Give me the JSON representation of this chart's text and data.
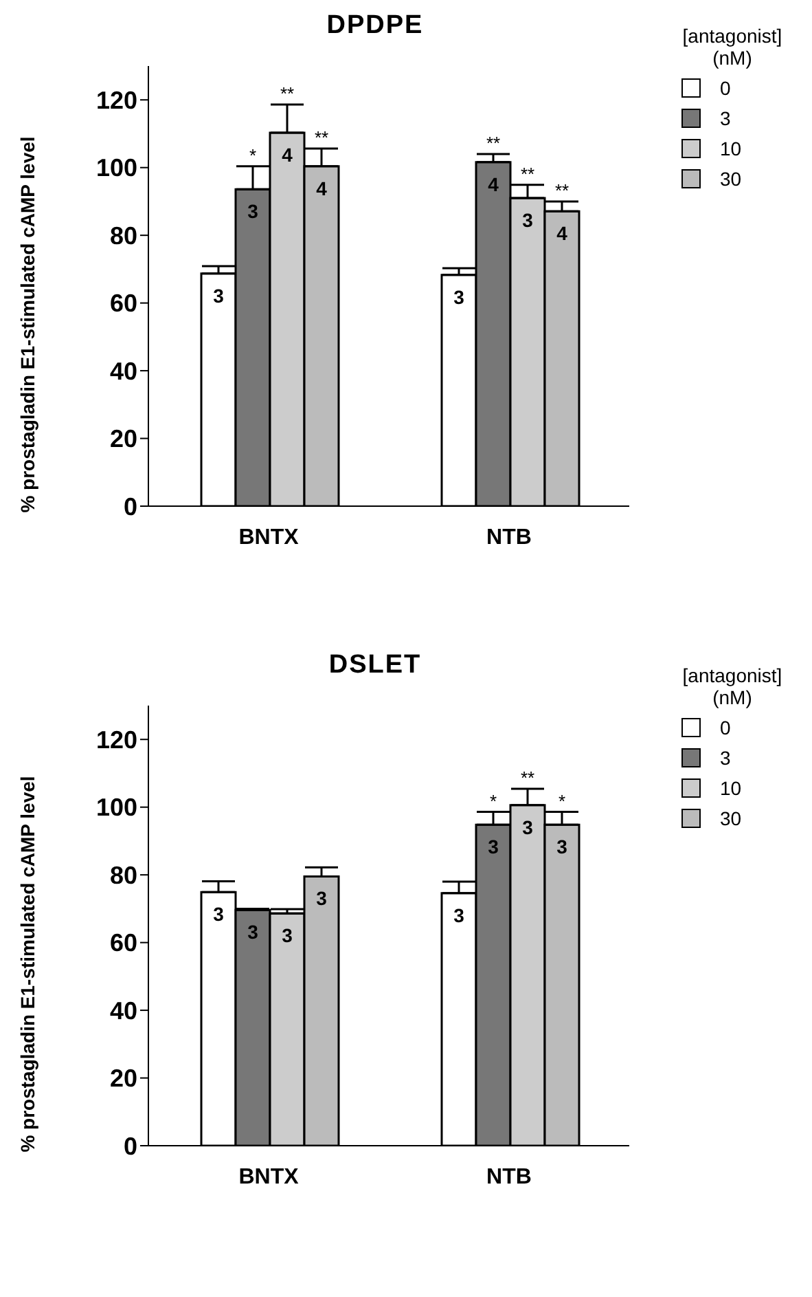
{
  "chart_data": [
    {
      "type": "bar",
      "title": "DPDPE",
      "ylabel": "% prostagladin E1-stimulated cAMP level",
      "categories": [
        "BNTX",
        "NTB"
      ],
      "ylim": [
        0,
        130
      ],
      "yticks": [
        0,
        20,
        40,
        60,
        80,
        100,
        120
      ],
      "legend": "top right",
      "legend_title": "[antagonist] (nM)",
      "series": [
        {
          "name": "0",
          "color": "#ffffff",
          "values": [
            68.7,
            68.3
          ],
          "errors": [
            2.2,
            2.0
          ]
        },
        {
          "name": "3",
          "color": "#777777",
          "values": [
            93.6,
            101.6
          ],
          "errors": [
            6.8,
            2.4
          ]
        },
        {
          "name": "10",
          "color": "#cccccc",
          "values": [
            110.3,
            91.0
          ],
          "errors": [
            8.3,
            3.9
          ]
        },
        {
          "name": "30",
          "color": "#bbbbbb",
          "values": [
            100.4,
            87.1
          ],
          "errors": [
            5.2,
            2.9
          ]
        }
      ],
      "annotations": [
        {
          "text": "*",
          "x": "BNTX",
          "y": 100.4
        },
        {
          "text": "**",
          "x": "BNTX",
          "y": 118.6
        },
        {
          "text": "**",
          "x": "BNTX",
          "y": 105.6
        },
        {
          "text": "**",
          "x": "NTB",
          "y": 104.0
        },
        {
          "text": "**",
          "x": "NTB",
          "y": 94.9
        },
        {
          "text": "**",
          "x": "NTB",
          "y": 90.0
        },
        "3",
        "3",
        "4",
        "4",
        "3",
        "4",
        "3",
        "4"
      ]
    },
    {
      "type": "bar",
      "title": "DSLET",
      "ylabel": "% prostagladin E1-stimulated cAMP level",
      "categories": [
        "BNTX",
        "NTB"
      ],
      "ylim": [
        0,
        130
      ],
      "yticks": [
        0,
        20,
        40,
        60,
        80,
        100,
        120
      ],
      "legend": "top right",
      "legend_title": "[antagonist] (nM)",
      "series": [
        {
          "name": "0",
          "color": "#ffffff",
          "values": [
            74.9,
            74.6
          ],
          "errors": [
            3.2,
            3.4
          ]
        },
        {
          "name": "3",
          "color": "#777777",
          "values": [
            69.6,
            94.8
          ],
          "errors": [
            0.4,
            3.8
          ]
        },
        {
          "name": "10",
          "color": "#cccccc",
          "values": [
            68.6,
            100.6
          ],
          "errors": [
            1.3,
            4.8
          ]
        },
        {
          "name": "30",
          "color": "#bbbbbb",
          "values": [
            79.5,
            94.8
          ],
          "errors": [
            2.7,
            3.8
          ]
        }
      ],
      "annotations": [
        {
          "text": "*",
          "x": "NTB",
          "y": 98.6
        },
        {
          "text": "**",
          "x": "NTB",
          "y": 105.4
        },
        {
          "text": "*",
          "x": "NTB",
          "y": 98.6
        },
        "3",
        "3",
        "3",
        "3",
        "3",
        "3",
        "3",
        "3"
      ]
    }
  ]
}
